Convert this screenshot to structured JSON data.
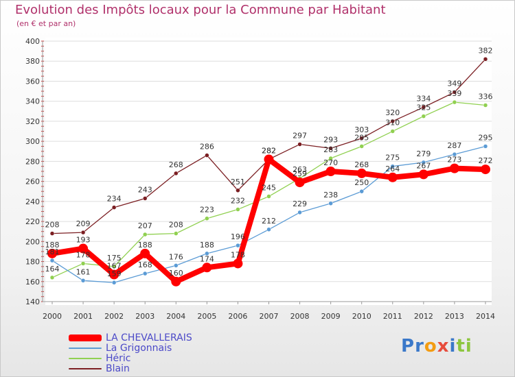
{
  "header": {
    "title": "Evolution des Impôts locaux pour la Commune par Habitant",
    "subtitle": "(en € et par an)"
  },
  "legend": [
    {
      "label": "LA CHEVALLERAIS",
      "color": "#ff0000"
    },
    {
      "label": "La Grigonnais",
      "color": "#5b9bd5"
    },
    {
      "label": "Héric",
      "color": "#90d050"
    },
    {
      "label": "Blain",
      "color": "#7b1e22"
    }
  ],
  "logo": {
    "letters": [
      "P",
      "r",
      "o",
      "x",
      "i",
      "t",
      "i"
    ],
    "colors": [
      "#3a78c9",
      "#3a78c9",
      "#f39c12",
      "#e74c3c",
      "#3a78c9",
      "#8dc63f",
      "#8dc63f"
    ]
  },
  "chart_data": {
    "type": "line",
    "title": "Evolution des Impôts locaux pour la Commune par Habitant",
    "subtitle": "(en € et par an)",
    "x": [
      "2000",
      "2001",
      "2002",
      "2003",
      "2004",
      "2005",
      "2006",
      "2007",
      "2008",
      "2009",
      "2010",
      "2011",
      "2012",
      "2013",
      "2014"
    ],
    "yticks": [
      "140",
      "160",
      "180",
      "200",
      "220",
      "240",
      "260",
      "280",
      "300",
      "320",
      "340",
      "360",
      "380",
      "400"
    ],
    "ylim": [
      140,
      400
    ],
    "grid": "horizontal",
    "series": [
      {
        "name": "Blain",
        "color": "#7b1e22",
        "values": [
          208,
          209,
          234,
          243,
          268,
          286,
          251,
          282,
          297,
          293,
          303,
          320,
          334,
          349,
          382
        ],
        "labels": [
          "208",
          "209",
          "234",
          "243",
          "268",
          "286",
          "251",
          "282",
          "297",
          "293",
          "303",
          "320",
          "334",
          "349",
          "382"
        ]
      },
      {
        "name": "Héric",
        "color": "#90d050",
        "values": [
          164,
          178,
          175,
          207,
          208,
          223,
          232,
          245,
          263,
          283,
          295,
          310,
          325,
          339,
          336
        ],
        "labels": [
          "164",
          "178",
          "175",
          "207",
          "208",
          "223",
          "232",
          "245",
          "263",
          "283",
          "295",
          "310",
          "325",
          "339",
          "336"
        ]
      },
      {
        "name": "La Grigonnais",
        "color": "#5b9bd5",
        "values": [
          181,
          161,
          159,
          168,
          176,
          188,
          196,
          212,
          229,
          238,
          250,
          275,
          279,
          287,
          295
        ],
        "labels": [
          "181",
          "161",
          "159",
          "168",
          "176",
          "188",
          "196",
          "212",
          "229",
          "238",
          "250",
          "275",
          "279",
          "287",
          "295"
        ]
      },
      {
        "name": "LA CHEVALLERAIS",
        "color": "#ff0000",
        "values": [
          188,
          193,
          167,
          188,
          160,
          174,
          178,
          282,
          259,
          270,
          268,
          264,
          267,
          273,
          272
        ],
        "labels": [
          "188",
          "193",
          "167",
          "188",
          "160",
          "174",
          "178",
          "282",
          "259",
          "270",
          "268",
          "264",
          "267",
          "273",
          "272"
        ]
      }
    ]
  }
}
